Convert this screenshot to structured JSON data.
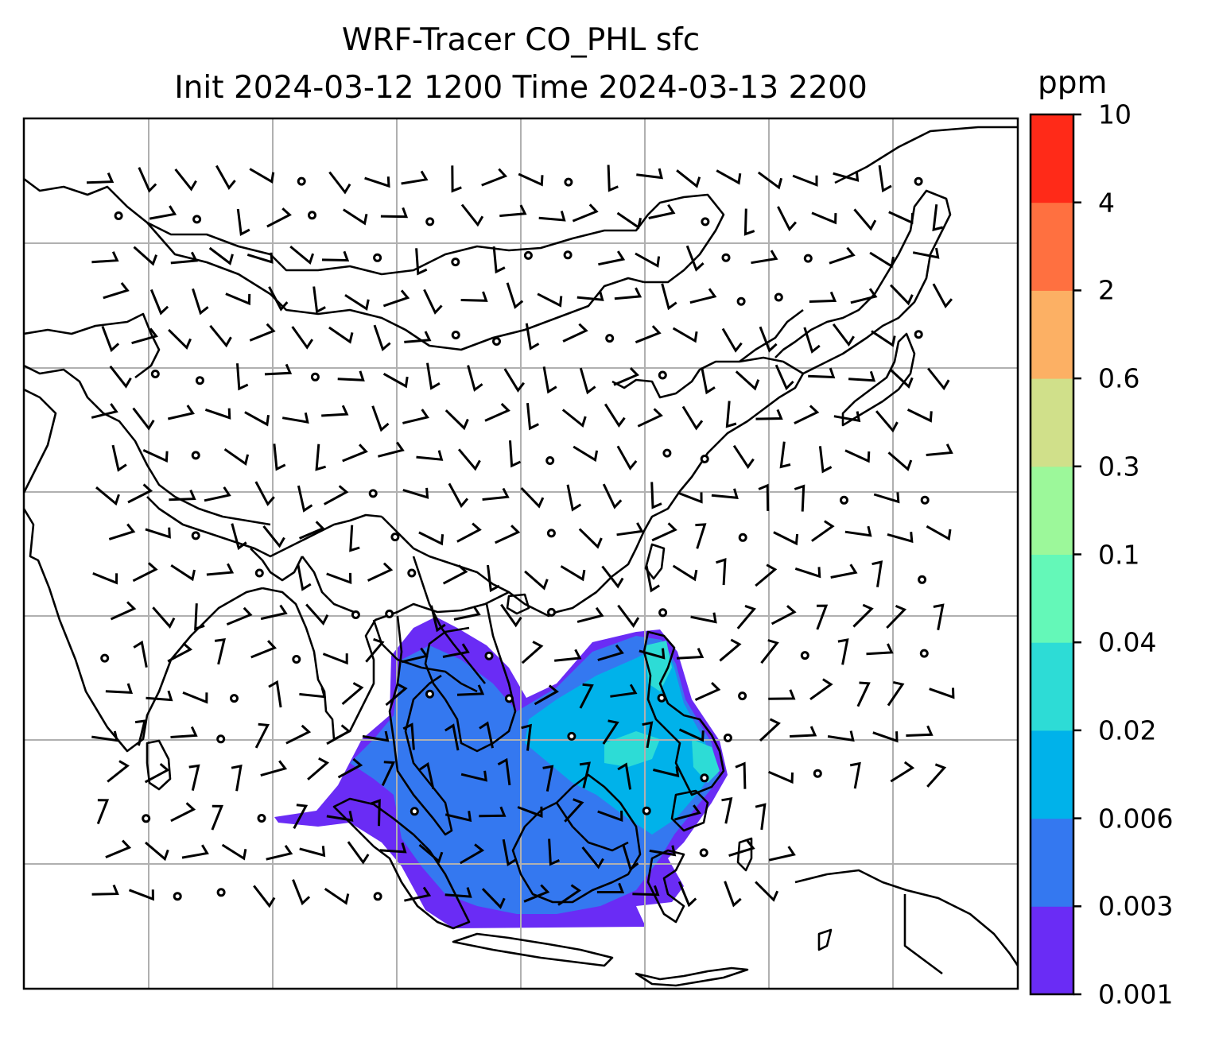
{
  "title": {
    "line1": "WRF-Tracer CO_PHL sfc",
    "line2": "Init 2024-03-12 1200 Time 2024-03-13 2200"
  },
  "colorbar": {
    "unit": "ppm",
    "levels": [
      "0.001",
      "0.003",
      "0.006",
      "0.02",
      "0.04",
      "0.1",
      "0.3",
      "0.6",
      "2",
      "4",
      "10"
    ],
    "colors": [
      "#6a2cf5",
      "#3478f0",
      "#00b2ea",
      "#2ddcd6",
      "#64f8b8",
      "#9cf89a",
      "#d0e08a",
      "#fcb064",
      "#ff7040",
      "#ff2a18"
    ]
  },
  "map": {
    "layer": "surface CO tracer concentration with wind barbs",
    "coastline_color": "#000000",
    "gridline_color": "#b0b0b0",
    "plume_colors": {
      "background": "#6a2cf5",
      "main": "#3478f0",
      "high": "#00b2ea",
      "higher": "#2ddcd6"
    }
  }
}
